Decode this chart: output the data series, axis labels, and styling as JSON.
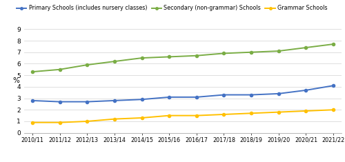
{
  "years": [
    "2010/11",
    "2011/12",
    "2012/13",
    "2013/14",
    "2014/15",
    "2015/16",
    "2016/17",
    "2017/18",
    "2018/19",
    "2019/20",
    "2020/21",
    "2021/22"
  ],
  "primary": [
    2.8,
    2.7,
    2.7,
    2.8,
    2.9,
    3.1,
    3.1,
    3.3,
    3.3,
    3.4,
    3.7,
    4.1
  ],
  "secondary": [
    5.3,
    5.5,
    5.9,
    6.2,
    6.5,
    6.6,
    6.7,
    6.9,
    7.0,
    7.1,
    7.4,
    7.7
  ],
  "grammar": [
    0.9,
    0.9,
    1.0,
    1.2,
    1.3,
    1.5,
    1.5,
    1.6,
    1.7,
    1.8,
    1.9,
    2.0
  ],
  "primary_color": "#4472c4",
  "secondary_color": "#7aad45",
  "grammar_color": "#ffc000",
  "primary_label": "Primary Schools (includes nursery classes)",
  "secondary_label": "Secondary (non-grammar) Schools",
  "grammar_label": "Grammar Schools",
  "ylabel": "%",
  "ylim": [
    0,
    9
  ],
  "yticks": [
    0,
    1,
    2,
    3,
    4,
    5,
    6,
    7,
    8,
    9
  ],
  "background_color": "#ffffff",
  "grid_color": "#d9d9d9"
}
